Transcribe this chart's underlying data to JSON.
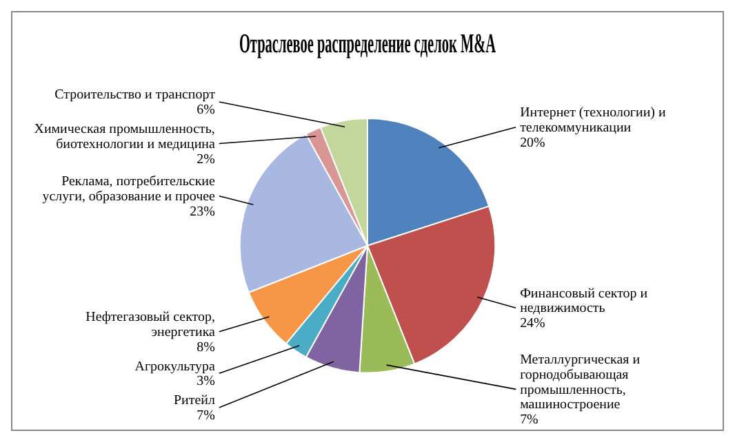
{
  "chart_data": {
    "type": "pie",
    "title": "Отраслевое распределение сделок M&A",
    "categories": [
      "Интернет (технологии) и телекоммуникации",
      "Финансовый сектор и недвижимость",
      "Металлургическая и горнодобывающая промышленность, машиностроение",
      "Ритейл",
      "Агрокультура",
      "Нефтегазовый сектор, энергетика",
      "Реклама, потребительские услуги, образование и прочее",
      "Химическая промышленность, биотехнологии и медицина",
      "Строительство и транспорт"
    ],
    "values": [
      20,
      24,
      7,
      7,
      3,
      8,
      23,
      2,
      6
    ],
    "value_labels": [
      "20%",
      "24%",
      "7%",
      "7%",
      "3%",
      "8%",
      "23%",
      "2%",
      "6%"
    ],
    "colors": [
      "#4f81bd",
      "#c0504d",
      "#9bbb59",
      "#8064a2",
      "#4bacc6",
      "#f79646",
      "#a9b8e0",
      "#d99694",
      "#c3d69b"
    ],
    "legend": false
  }
}
